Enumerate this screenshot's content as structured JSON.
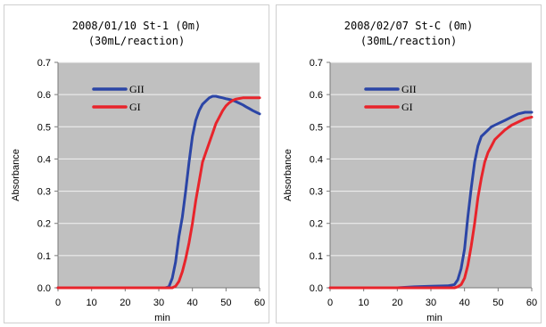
{
  "colors": {
    "GII": "#2b45a6",
    "GI": "#e8242b"
  },
  "chart_data": [
    {
      "type": "line",
      "title_line1": "2008/01/10 St-1 (0m)",
      "title_line2": "(30mL/reaction)",
      "xlabel": "min",
      "ylabel": "Absorbance",
      "xlim": [
        0,
        60
      ],
      "ylim": [
        0,
        0.7
      ],
      "xticks": [
        "0",
        "10",
        "20",
        "30",
        "40",
        "50",
        "60"
      ],
      "yticks": [
        "0.0",
        "0.1",
        "0.2",
        "0.3",
        "0.4",
        "0.5",
        "0.6",
        "0.7"
      ],
      "grid": true,
      "legend_position": "top-left",
      "series": [
        {
          "name": "GII",
          "color_key": "GII",
          "x": [
            0,
            10,
            20,
            30,
            32,
            33,
            34,
            35,
            36,
            37,
            38,
            39,
            40,
            41,
            42,
            43,
            44,
            45,
            46,
            47,
            48,
            49,
            50,
            51,
            52,
            53,
            54,
            55,
            56,
            57,
            58,
            59,
            60
          ],
          "y": [
            0,
            0,
            0,
            0,
            0,
            0.003,
            0.03,
            0.08,
            0.16,
            0.22,
            0.3,
            0.39,
            0.47,
            0.52,
            0.55,
            0.57,
            0.58,
            0.59,
            0.595,
            0.595,
            0.592,
            0.59,
            0.587,
            0.585,
            0.582,
            0.578,
            0.573,
            0.568,
            0.562,
            0.556,
            0.55,
            0.545,
            0.54
          ]
        },
        {
          "name": "GI",
          "color_key": "GI",
          "x": [
            0,
            10,
            20,
            30,
            34,
            35,
            36,
            37,
            38,
            39,
            40,
            41,
            42,
            43,
            44,
            45,
            46,
            47,
            48,
            49,
            50,
            51,
            52,
            53,
            54,
            55,
            56,
            57,
            58,
            59,
            60
          ],
          "y": [
            0,
            0,
            0,
            0,
            0,
            0.005,
            0.02,
            0.05,
            0.09,
            0.14,
            0.2,
            0.27,
            0.33,
            0.39,
            0.42,
            0.45,
            0.48,
            0.51,
            0.53,
            0.55,
            0.565,
            0.575,
            0.582,
            0.586,
            0.588,
            0.59,
            0.59,
            0.59,
            0.59,
            0.59,
            0.59
          ]
        }
      ]
    },
    {
      "type": "line",
      "title_line1": "2008/02/07 St-C (0m)",
      "title_line2": "(30mL/reaction)",
      "xlabel": "min",
      "ylabel": "Absorbance",
      "xlim": [
        0,
        60
      ],
      "ylim": [
        0,
        0.7
      ],
      "xticks": [
        "0",
        "10",
        "20",
        "30",
        "40",
        "50",
        "60"
      ],
      "yticks": [
        "0.0",
        "0.1",
        "0.2",
        "0.3",
        "0.4",
        "0.5",
        "0.6",
        "0.7"
      ],
      "grid": true,
      "legend_position": "top-left",
      "series": [
        {
          "name": "GII",
          "color_key": "GII",
          "x": [
            0,
            10,
            20,
            25,
            30,
            35,
            37,
            38,
            39,
            40,
            41,
            42,
            43,
            44,
            45,
            46,
            47,
            48,
            50,
            52,
            54,
            56,
            58,
            60
          ],
          "y": [
            0,
            0,
            0,
            0.003,
            0.005,
            0.006,
            0.01,
            0.025,
            0.06,
            0.12,
            0.22,
            0.31,
            0.39,
            0.44,
            0.47,
            0.48,
            0.49,
            0.5,
            0.51,
            0.52,
            0.53,
            0.54,
            0.545,
            0.545
          ]
        },
        {
          "name": "GI",
          "color_key": "GI",
          "x": [
            0,
            10,
            20,
            30,
            37,
            38,
            39,
            40,
            41,
            42,
            43,
            44,
            45,
            46,
            47,
            48,
            49,
            50,
            52,
            54,
            56,
            58,
            60
          ],
          "y": [
            0,
            0,
            0,
            0,
            0,
            0.003,
            0.01,
            0.03,
            0.07,
            0.13,
            0.2,
            0.28,
            0.34,
            0.39,
            0.42,
            0.44,
            0.46,
            0.47,
            0.49,
            0.505,
            0.515,
            0.525,
            0.53
          ]
        }
      ]
    }
  ]
}
